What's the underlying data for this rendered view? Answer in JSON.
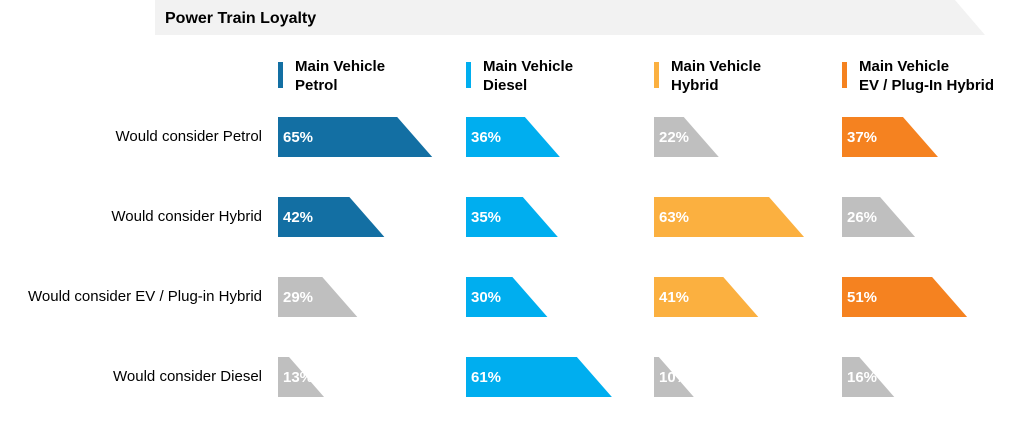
{
  "chart_data": {
    "type": "bar",
    "title": "Power Train Loyalty",
    "categories": [
      "Would consider Petrol",
      "Would consider Hybrid",
      "Would consider EV / Plug-in Hybrid",
      "Would consider Diesel"
    ],
    "series": [
      {
        "name": "Main Vehicle\nPetrol",
        "color": "#136fa3",
        "values": [
          65,
          42,
          29,
          13
        ],
        "value_labels": [
          "65%",
          "42%",
          "29%",
          "13%"
        ],
        "colors": [
          "#136fa3",
          "#136fa3",
          "#bfbfbf",
          "#bfbfbf"
        ]
      },
      {
        "name": "Main Vehicle\nDiesel",
        "color": "#00aeef",
        "values": [
          36,
          35,
          30,
          61
        ],
        "value_labels": [
          "36%",
          "35%",
          "30%",
          "61%"
        ],
        "colors": [
          "#00aeef",
          "#00aeef",
          "#00aeef",
          "#00aeef"
        ]
      },
      {
        "name": "Main Vehicle\nHybrid",
        "color": "#fbb040",
        "values": [
          22,
          63,
          41,
          10
        ],
        "value_labels": [
          "22%",
          "63%",
          "41%",
          "10%"
        ],
        "colors": [
          "#bfbfbf",
          "#fbb040",
          "#fbb040",
          "#bfbfbf"
        ]
      },
      {
        "name": "Main Vehicle\nEV / Plug-In Hybrid",
        "color": "#f58220",
        "values": [
          37,
          26,
          51,
          16
        ],
        "value_labels": [
          "37%",
          "26%",
          "51%",
          "16%"
        ],
        "colors": [
          "#f58220",
          "#bfbfbf",
          "#f58220",
          "#bfbfbf"
        ]
      }
    ]
  }
}
